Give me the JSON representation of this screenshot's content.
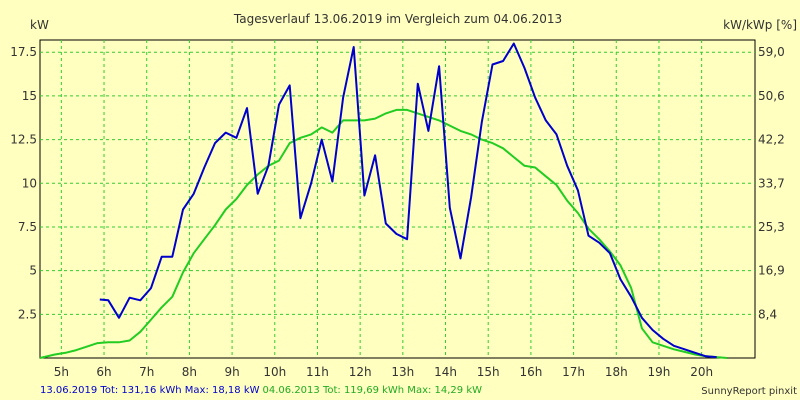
{
  "chart_data": {
    "type": "line",
    "title": "Tagesverlauf 13.06.2019 im Vergleich zum 04.06.2013",
    "ylabel": "kW",
    "y2label": "kW/kWp [%]",
    "x_ticks": [
      "5h",
      "6h",
      "7h",
      "8h",
      "9h",
      "10h",
      "11h",
      "12h",
      "13h",
      "14h",
      "15h",
      "16h",
      "17h",
      "18h",
      "19h",
      "20h"
    ],
    "y_ticks": [
      "2.5",
      "5",
      "7.5",
      "10",
      "12.5",
      "15",
      "17.5"
    ],
    "y2_ticks": [
      "8,4",
      "16,9",
      "25,3",
      "33,7",
      "42,2",
      "50,6",
      "59,0"
    ],
    "xlim": [
      4.5,
      21.25
    ],
    "ylim": [
      0,
      18.2
    ],
    "grid": true,
    "series": [
      {
        "name": "13.06.2019",
        "color": "#0000CC",
        "x": [
          5.9,
          6.1,
          6.35,
          6.6,
          6.85,
          7.1,
          7.35,
          7.6,
          7.85,
          8.1,
          8.35,
          8.6,
          8.85,
          9.1,
          9.35,
          9.6,
          9.85,
          10.1,
          10.35,
          10.6,
          10.85,
          11.1,
          11.35,
          11.6,
          11.85,
          12.1,
          12.35,
          12.6,
          12.85,
          13.1,
          13.35,
          13.6,
          13.85,
          14.1,
          14.35,
          14.6,
          14.85,
          15.1,
          15.35,
          15.6,
          15.85,
          16.1,
          16.35,
          16.6,
          16.85,
          17.1,
          17.35,
          17.6,
          17.85,
          18.1,
          18.35,
          18.6,
          18.85,
          19.1,
          19.35,
          19.6,
          19.85,
          20.1,
          20.35
        ],
        "y": [
          3.35,
          3.3,
          2.3,
          3.45,
          3.3,
          4.0,
          5.8,
          5.8,
          8.5,
          9.4,
          10.9,
          12.3,
          12.9,
          12.6,
          14.3,
          9.4,
          11.0,
          14.5,
          15.6,
          8.0,
          10.0,
          12.5,
          10.1,
          14.9,
          17.8,
          9.3,
          11.6,
          7.7,
          7.1,
          6.8,
          15.7,
          13.0,
          16.7,
          8.6,
          5.7,
          9.2,
          13.5,
          16.8,
          17.0,
          18.0,
          16.6,
          14.9,
          13.6,
          12.8,
          11.0,
          9.6,
          7.0,
          6.6,
          6.0,
          4.5,
          3.5,
          2.3,
          1.6,
          1.1,
          0.7,
          0.5,
          0.3,
          0.1,
          0.05
        ]
      },
      {
        "name": "04.06.2013",
        "color": "#22CC22",
        "x": [
          4.5,
          4.85,
          5.1,
          5.35,
          5.6,
          5.85,
          6.1,
          6.35,
          6.6,
          6.85,
          7.1,
          7.35,
          7.6,
          7.85,
          8.1,
          8.35,
          8.6,
          8.85,
          9.1,
          9.35,
          9.6,
          9.85,
          10.1,
          10.35,
          10.6,
          10.85,
          11.1,
          11.35,
          11.6,
          11.85,
          12.1,
          12.35,
          12.6,
          12.85,
          13.1,
          13.35,
          13.6,
          13.85,
          14.1,
          14.35,
          14.6,
          14.85,
          15.1,
          15.35,
          15.6,
          15.85,
          16.1,
          16.35,
          16.6,
          16.85,
          17.1,
          17.35,
          17.6,
          17.85,
          18.1,
          18.35,
          18.6,
          18.85,
          19.1,
          19.35,
          19.6,
          19.85,
          20.1,
          20.35,
          20.6
        ],
        "y": [
          0.0,
          0.2,
          0.3,
          0.45,
          0.65,
          0.85,
          0.9,
          0.9,
          1.0,
          1.5,
          2.2,
          2.9,
          3.5,
          4.9,
          6.0,
          6.8,
          7.6,
          8.5,
          9.1,
          9.9,
          10.5,
          11.0,
          11.3,
          12.3,
          12.6,
          12.8,
          13.2,
          12.9,
          13.6,
          13.6,
          13.6,
          13.7,
          14.0,
          14.2,
          14.2,
          14.0,
          13.8,
          13.6,
          13.3,
          13.0,
          12.8,
          12.5,
          12.3,
          12.0,
          11.5,
          11.0,
          10.9,
          10.4,
          9.9,
          9.0,
          8.3,
          7.4,
          6.8,
          6.1,
          5.3,
          4.0,
          1.7,
          0.9,
          0.7,
          0.5,
          0.35,
          0.2,
          0.1,
          0.05,
          0.0
        ]
      }
    ]
  },
  "footer": {
    "series1_summary": "13.06.2019 Tot: 131,16 kWh Max: 18,18 kW",
    "series2_summary": "04.06.2013 Tot: 119,69 kWh Max: 14,29 kW",
    "credit": "SunnyReport pinxit"
  }
}
